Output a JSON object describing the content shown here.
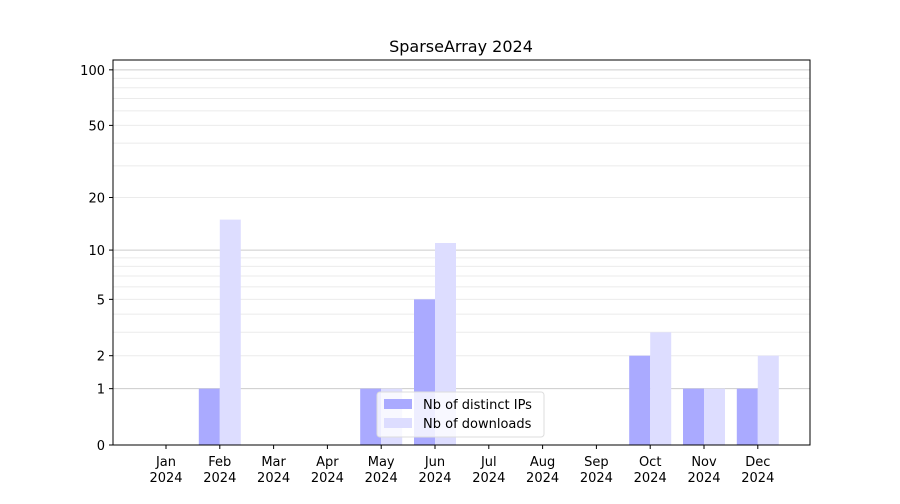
{
  "chart_data": {
    "type": "bar",
    "title": "SparseArray 2024",
    "xlabel": "",
    "ylabel": "",
    "yscale": "symlog",
    "ylim": [
      0,
      113
    ],
    "yticks": [
      0,
      1,
      2,
      5,
      10,
      20,
      50,
      100
    ],
    "grid": true,
    "legend_position": "lower-center",
    "categories": [
      "Jan\n2024",
      "Feb\n2024",
      "Mar\n2024",
      "Apr\n2024",
      "May\n2024",
      "Jun\n2024",
      "Jul\n2024",
      "Aug\n2024",
      "Sep\n2024",
      "Oct\n2024",
      "Nov\n2024",
      "Dec\n2024"
    ],
    "series": [
      {
        "name": "Nb of distinct IPs",
        "color": "#aaaaff",
        "values": [
          0,
          1,
          0,
          0,
          1,
          5,
          0,
          0,
          0,
          2,
          1,
          1
        ]
      },
      {
        "name": "Nb of downloads",
        "color": "#ddddff",
        "values": [
          0,
          15,
          0,
          0,
          1,
          11,
          0,
          0,
          0,
          3,
          1,
          2
        ]
      }
    ]
  }
}
